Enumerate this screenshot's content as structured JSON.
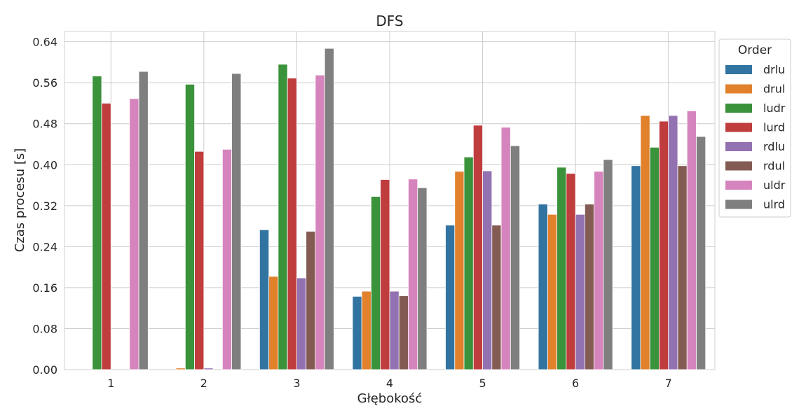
{
  "chart_data": {
    "type": "bar",
    "title": "DFS",
    "xlabel": "Głębokość",
    "ylabel": "Czas procesu [s]",
    "categories": [
      "1",
      "2",
      "3",
      "4",
      "5",
      "6",
      "7"
    ],
    "ylim": [
      0,
      0.66
    ],
    "yticks": [
      "0.00",
      "0.08",
      "0.16",
      "0.24",
      "0.32",
      "0.40",
      "0.48",
      "0.56",
      "0.64"
    ],
    "grid": true,
    "legend": {
      "title": "Order",
      "placement": "outside-right"
    },
    "series": [
      {
        "name": "drlu",
        "color": "#3274a1",
        "values": [
          0.0,
          0.0,
          0.273,
          0.143,
          0.282,
          0.323,
          0.398
        ]
      },
      {
        "name": "drul",
        "color": "#e1812c",
        "values": [
          0.0,
          0.003,
          0.182,
          0.153,
          0.387,
          0.303,
          0.496
        ]
      },
      {
        "name": "ludr",
        "color": "#3a923a",
        "values": [
          0.573,
          0.557,
          0.596,
          0.338,
          0.415,
          0.395,
          0.434
        ]
      },
      {
        "name": "lurd",
        "color": "#c03d3e",
        "values": [
          0.52,
          0.426,
          0.569,
          0.371,
          0.477,
          0.383,
          0.485
        ]
      },
      {
        "name": "rdlu",
        "color": "#9372b2",
        "values": [
          0.0,
          0.003,
          0.179,
          0.153,
          0.388,
          0.303,
          0.496
        ]
      },
      {
        "name": "rdul",
        "color": "#845b53",
        "values": [
          0.0,
          0.0,
          0.27,
          0.144,
          0.282,
          0.323,
          0.398
        ]
      },
      {
        "name": "uldr",
        "color": "#d684bd",
        "values": [
          0.529,
          0.43,
          0.575,
          0.372,
          0.473,
          0.387,
          0.505
        ]
      },
      {
        "name": "ulrd",
        "color": "#7f7f7f",
        "values": [
          0.582,
          0.578,
          0.627,
          0.355,
          0.437,
          0.41,
          0.455
        ]
      }
    ]
  }
}
